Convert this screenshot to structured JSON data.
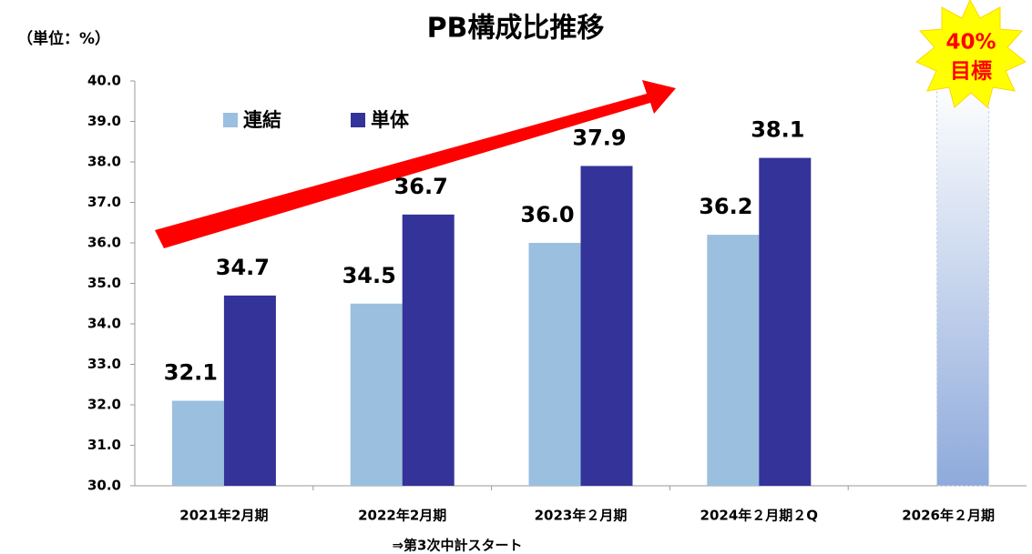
{
  "chart_data": {
    "type": "bar",
    "title": "PB構成比推移",
    "unit_label": "（単位：%）",
    "annotation": "⇒第3次中計スタート",
    "categories": [
      "2021年2月期",
      "2022年2月期",
      "2023年２月期",
      "2024年２月期２Q",
      "2026年２月期"
    ],
    "series": [
      {
        "name": "連結",
        "color": "#9bbfdf",
        "values": [
          32.1,
          34.5,
          36.0,
          36.2,
          null
        ],
        "value_labels": [
          "32.1",
          "34.5",
          "36.0",
          "36.2",
          null
        ]
      },
      {
        "name": "単体",
        "color": "#333399",
        "values": [
          34.7,
          36.7,
          37.9,
          38.1,
          null
        ],
        "value_labels": [
          "34.7",
          "36.7",
          "37.9",
          "38.1",
          null
        ]
      }
    ],
    "target": {
      "value": 40,
      "labels": [
        "40%",
        "目標"
      ]
    },
    "ylim": [
      30,
      40
    ],
    "yticks": [
      {
        "value": 30,
        "label": "30.0"
      },
      {
        "value": 31,
        "label": "31.0"
      },
      {
        "value": 32,
        "label": "32.0"
      },
      {
        "value": 33,
        "label": "33.0"
      },
      {
        "value": 34,
        "label": "34.0"
      },
      {
        "value": 35,
        "label": "35.0"
      },
      {
        "value": 36,
        "label": "36.0"
      },
      {
        "value": 37,
        "label": "37.0"
      },
      {
        "value": 38,
        "label": "38.0"
      },
      {
        "value": 39,
        "label": "39.0"
      },
      {
        "value": 40,
        "label": "40.0"
      }
    ],
    "grid": false,
    "legend": "top-left"
  }
}
